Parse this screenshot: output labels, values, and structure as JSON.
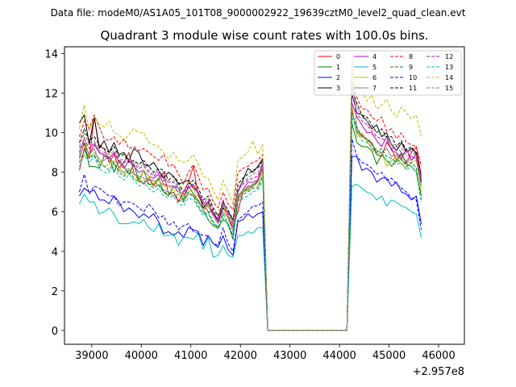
{
  "chart_data": {
    "type": "line",
    "suptitle": "Data file: modeM0/AS1A05_101T08_9000002922_19639cztM0_level2_quad_clean.evt",
    "title": "Quadrant 3 module wise count rates with 100.0s bins.",
    "xlabel": "",
    "ylabel": "",
    "x_offset_label": "+2.957e8",
    "xlim": [
      38450,
      46520
    ],
    "ylim": [
      -0.7,
      14.35
    ],
    "xticks": [
      39000,
      40000,
      41000,
      42000,
      43000,
      44000,
      45000,
      46000
    ],
    "xtick_labels": [
      "39000",
      "40000",
      "41000",
      "42000",
      "43000",
      "44000",
      "45000",
      "46000"
    ],
    "yticks": [
      0,
      2,
      4,
      6,
      8,
      10,
      12,
      14
    ],
    "ytick_labels": [
      "0",
      "2",
      "4",
      "6",
      "8",
      "10",
      "12",
      "14"
    ],
    "legend_position": "upper-right",
    "x_start": 38750,
    "x_step": 100,
    "series": [
      {
        "name": "0",
        "color": "#ff0000",
        "dash": false,
        "values": [
          8.1,
          9.2,
          8.7,
          10.8,
          9.3,
          9.2,
          8.5,
          8.9,
          8.2,
          8.5,
          9.0,
          8.0,
          7.6,
          7.4,
          7.7,
          7.3,
          7.7,
          8.0,
          6.9,
          7.0,
          6.5,
          7.0,
          7.5,
          8.3,
          6.8,
          6.4,
          6.0,
          6.0,
          5.5,
          6.2,
          5.8,
          5.2,
          6.0,
          7.0,
          7.3,
          7.3,
          7.6,
          8.5,
          0,
          0,
          0,
          0,
          0,
          0,
          0,
          0,
          0,
          0,
          0,
          0,
          0,
          0,
          0,
          0,
          0,
          11.2,
          10.0,
          9.9,
          9.6,
          9.5,
          8.9,
          8.8,
          9.5,
          9.2,
          8.6,
          8.9,
          8.5,
          9.0,
          9.3,
          7.8
        ]
      },
      {
        "name": "1",
        "color": "#008000",
        "dash": false,
        "values": [
          8.7,
          9.5,
          8.3,
          8.3,
          8.2,
          8.8,
          8.8,
          8.0,
          8.6,
          8.3,
          7.9,
          8.4,
          7.6,
          8.1,
          7.4,
          7.4,
          7.7,
          7.0,
          6.8,
          7.3,
          7.2,
          6.6,
          7.3,
          6.9,
          6.6,
          6.1,
          5.6,
          5.3,
          5.2,
          5.6,
          5.4,
          4.6,
          6.7,
          7.0,
          7.1,
          7.3,
          7.5,
          8.2,
          0,
          0,
          0,
          0,
          0,
          0,
          0,
          0,
          0,
          0,
          0,
          0,
          0,
          0,
          0,
          0,
          0,
          10.5,
          9.5,
          9.3,
          9.3,
          9.1,
          8.4,
          8.9,
          8.6,
          8.3,
          8.6,
          9.0,
          8.4,
          8.3,
          8.0,
          6.8
        ]
      },
      {
        "name": "2",
        "color": "#0000ff",
        "dash": false,
        "values": [
          6.8,
          7.2,
          7.0,
          7.1,
          6.6,
          6.6,
          6.4,
          6.8,
          6.5,
          6.0,
          6.2,
          6.0,
          5.7,
          5.9,
          5.7,
          5.9,
          5.5,
          4.9,
          5.0,
          4.8,
          5.0,
          4.7,
          5.2,
          5.1,
          5.0,
          4.3,
          4.8,
          4.4,
          4.2,
          4.8,
          4.1,
          3.8,
          5.5,
          5.6,
          5.9,
          5.7,
          5.9,
          6.0,
          0,
          0,
          0,
          0,
          0,
          0,
          0,
          0,
          0,
          0,
          0,
          0,
          0,
          0,
          0,
          0,
          0,
          8.8,
          8.8,
          8.1,
          8.2,
          8.0,
          7.5,
          7.7,
          7.7,
          7.3,
          7.5,
          7.0,
          6.9,
          6.6,
          6.8,
          5.4
        ]
      },
      {
        "name": "3",
        "color": "#000000",
        "dash": false,
        "values": [
          10.5,
          10.9,
          9.4,
          10.8,
          9.2,
          9.6,
          9.0,
          9.5,
          8.9,
          9.0,
          8.6,
          9.2,
          9.0,
          8.4,
          8.3,
          8.5,
          8.1,
          7.7,
          8.0,
          7.8,
          7.4,
          7.5,
          7.6,
          7.2,
          7.0,
          6.2,
          6.5,
          5.9,
          5.6,
          6.2,
          6.0,
          5.6,
          7.0,
          7.6,
          8.2,
          8.0,
          8.3,
          8.7,
          0,
          0,
          0,
          0,
          0,
          0,
          0,
          0,
          0,
          0,
          0,
          0,
          0,
          0,
          0,
          0,
          0,
          12.0,
          11.0,
          10.9,
          10.6,
          10.2,
          10.4,
          9.8,
          10.0,
          9.4,
          9.1,
          9.5,
          9.0,
          9.2,
          9.0,
          7.5
        ]
      },
      {
        "name": "4",
        "color": "#bf00bf",
        "dash": false,
        "values": [
          9.2,
          9.5,
          8.9,
          9.4,
          9.0,
          8.9,
          8.7,
          9.0,
          8.5,
          8.2,
          8.6,
          8.3,
          8.0,
          8.1,
          7.8,
          7.7,
          7.9,
          7.4,
          7.3,
          7.3,
          7.0,
          6.8,
          7.2,
          7.4,
          6.9,
          6.5,
          6.3,
          5.9,
          5.5,
          6.6,
          5.7,
          5.2,
          6.8,
          7.1,
          7.5,
          7.5,
          7.6,
          8.2,
          0,
          0,
          0,
          0,
          0,
          0,
          0,
          0,
          0,
          0,
          0,
          0,
          0,
          0,
          0,
          0,
          0,
          11.5,
          10.8,
          10.4,
          10.0,
          10.0,
          9.6,
          9.3,
          9.8,
          9.1,
          9.0,
          8.7,
          9.2,
          8.6,
          8.9,
          7.7
        ]
      },
      {
        "name": "5",
        "color": "#00bfbf",
        "dash": false,
        "values": [
          6.4,
          6.9,
          6.5,
          6.5,
          5.9,
          6.0,
          6.2,
          5.9,
          5.4,
          5.4,
          5.4,
          5.5,
          5.4,
          5.6,
          5.2,
          5.0,
          5.4,
          4.8,
          4.8,
          4.9,
          4.3,
          4.7,
          4.7,
          4.6,
          4.9,
          4.1,
          4.7,
          3.7,
          3.8,
          4.3,
          3.8,
          3.7,
          4.8,
          4.8,
          5.0,
          4.9,
          5.2,
          5.2,
          0,
          0,
          0,
          0,
          0,
          0,
          0,
          0,
          0,
          0,
          0,
          0,
          0,
          0,
          0,
          0,
          0,
          7.3,
          7.4,
          7.2,
          7.0,
          6.9,
          6.6,
          6.8,
          6.3,
          6.6,
          6.5,
          6.3,
          6.2,
          6.0,
          5.9,
          4.7
        ]
      },
      {
        "name": "6",
        "color": "#bfbf00",
        "dash": false,
        "values": [
          8.9,
          9.8,
          8.7,
          9.0,
          8.7,
          8.3,
          8.4,
          8.6,
          8.3,
          7.9,
          8.1,
          8.0,
          7.5,
          8.1,
          7.8,
          7.4,
          7.6,
          7.3,
          7.3,
          7.1,
          7.0,
          6.8,
          7.0,
          7.2,
          6.5,
          6.1,
          6.4,
          6.0,
          5.8,
          6.3,
          5.8,
          5.3,
          6.9,
          7.0,
          7.2,
          7.4,
          7.3,
          8.0,
          0,
          0,
          0,
          0,
          0,
          0,
          0,
          0,
          0,
          0,
          0,
          0,
          0,
          0,
          0,
          0,
          0,
          11.4,
          9.8,
          10.0,
          9.6,
          9.2,
          8.9,
          9.0,
          8.3,
          8.6,
          8.8,
          8.4,
          8.2,
          8.5,
          8.6,
          7.0
        ]
      },
      {
        "name": "7",
        "color": "#808080",
        "dash": false,
        "values": [
          8.8,
          9.4,
          8.9,
          9.2,
          8.5,
          8.6,
          8.8,
          8.4,
          8.1,
          8.0,
          8.2,
          7.9,
          7.8,
          7.7,
          7.6,
          7.6,
          7.3,
          7.1,
          7.0,
          6.8,
          6.9,
          6.5,
          6.9,
          6.8,
          6.5,
          6.1,
          6.3,
          5.8,
          5.4,
          6.0,
          5.7,
          5.0,
          6.6,
          7.1,
          7.2,
          7.4,
          7.5,
          8.3,
          0,
          0,
          0,
          0,
          0,
          0,
          0,
          0,
          0,
          0,
          0,
          0,
          0,
          0,
          0,
          0,
          0,
          13.6,
          10.2,
          9.8,
          9.7,
          9.4,
          9.1,
          9.0,
          9.2,
          8.8,
          8.9,
          8.6,
          8.4,
          8.8,
          8.7,
          7.3
        ]
      },
      {
        "name": "8",
        "color": "#ff0000",
        "dash": true,
        "values": [
          9.8,
          10.6,
          10.2,
          10.9,
          10.3,
          9.7,
          9.6,
          9.8,
          9.4,
          9.7,
          9.2,
          9.3,
          9.1,
          9.2,
          9.0,
          8.8,
          8.6,
          8.9,
          8.3,
          8.4,
          7.9,
          7.4,
          8.0,
          8.4,
          7.8,
          7.1,
          7.2,
          6.5,
          6.2,
          7.0,
          6.4,
          6.1,
          8.0,
          8.2,
          8.3,
          8.5,
          8.6,
          8.9,
          0,
          0,
          0,
          0,
          0,
          0,
          0,
          0,
          0,
          0,
          0,
          0,
          0,
          0,
          0,
          0,
          0,
          12.5,
          11.8,
          11.2,
          11.2,
          10.8,
          10.6,
          10.8,
          10.1,
          10.2,
          9.7,
          10.0,
          9.5,
          9.4,
          9.3,
          8.3
        ]
      },
      {
        "name": "9",
        "color": "#008000",
        "dash": true,
        "values": [
          8.5,
          9.1,
          8.7,
          8.9,
          8.4,
          8.3,
          8.1,
          8.5,
          8.0,
          7.8,
          8.1,
          7.7,
          7.5,
          7.6,
          7.4,
          7.2,
          7.4,
          7.0,
          6.9,
          7.0,
          6.6,
          6.5,
          7.0,
          6.8,
          6.3,
          5.9,
          6.0,
          5.5,
          5.2,
          5.9,
          5.4,
          4.8,
          6.5,
          6.9,
          7.0,
          7.2,
          7.2,
          7.8,
          0,
          0,
          0,
          0,
          0,
          0,
          0,
          0,
          0,
          0,
          0,
          0,
          0,
          0,
          0,
          0,
          0,
          11.0,
          10.3,
          9.8,
          9.7,
          9.5,
          9.0,
          9.2,
          8.8,
          8.7,
          8.5,
          8.7,
          8.3,
          8.5,
          8.2,
          6.6
        ]
      },
      {
        "name": "10",
        "color": "#0000ff",
        "dash": true,
        "values": [
          7.0,
          7.9,
          6.9,
          7.3,
          7.2,
          7.0,
          6.8,
          6.8,
          6.3,
          6.5,
          6.5,
          6.4,
          6.2,
          6.0,
          6.4,
          6.1,
          5.7,
          5.8,
          5.3,
          5.5,
          5.1,
          5.3,
          5.4,
          5.0,
          4.9,
          4.8,
          4.8,
          4.4,
          4.3,
          5.2,
          4.4,
          4.0,
          5.6,
          5.8,
          6.0,
          6.3,
          6.3,
          6.5,
          0,
          0,
          0,
          0,
          0,
          0,
          0,
          0,
          0,
          0,
          0,
          0,
          0,
          0,
          0,
          0,
          0,
          9.7,
          8.8,
          8.5,
          8.4,
          8.2,
          7.9,
          8.0,
          7.6,
          7.7,
          7.4,
          7.2,
          7.0,
          6.7,
          6.6,
          5.1
        ]
      },
      {
        "name": "11",
        "color": "#000000",
        "dash": true,
        "values": [
          9.5,
          10.2,
          9.6,
          9.8,
          9.4,
          9.2,
          9.0,
          9.3,
          8.8,
          8.9,
          8.5,
          8.6,
          8.4,
          8.6,
          8.3,
          8.0,
          8.2,
          8.1,
          7.6,
          7.8,
          7.5,
          7.0,
          7.4,
          7.6,
          7.2,
          6.6,
          6.8,
          6.2,
          5.8,
          6.5,
          6.1,
          5.6,
          7.4,
          7.7,
          7.9,
          8.1,
          8.2,
          8.6,
          0,
          0,
          0,
          0,
          0,
          0,
          0,
          0,
          0,
          0,
          0,
          0,
          0,
          0,
          0,
          0,
          0,
          12.2,
          11.5,
          10.9,
          10.8,
          10.4,
          10.0,
          10.2,
          9.8,
          9.8,
          9.3,
          9.6,
          9.1,
          9.3,
          8.9,
          7.9
        ]
      },
      {
        "name": "12",
        "color": "#bf00bf",
        "dash": true,
        "values": [
          9.0,
          9.7,
          9.2,
          9.5,
          9.0,
          8.8,
          8.7,
          9.0,
          8.6,
          8.5,
          8.6,
          8.4,
          8.2,
          8.3,
          8.0,
          7.8,
          8.0,
          7.6,
          7.5,
          7.5,
          7.2,
          6.9,
          7.3,
          7.3,
          6.9,
          6.4,
          6.6,
          6.0,
          5.6,
          6.4,
          5.9,
          5.4,
          7.1,
          7.4,
          7.6,
          7.7,
          7.8,
          8.4,
          0,
          0,
          0,
          0,
          0,
          0,
          0,
          0,
          0,
          0,
          0,
          0,
          0,
          0,
          0,
          0,
          0,
          12.0,
          11.0,
          10.6,
          10.4,
          10.1,
          9.8,
          9.7,
          9.6,
          9.2,
          9.3,
          9.0,
          8.9,
          8.8,
          8.7,
          7.6
        ]
      },
      {
        "name": "13",
        "color": "#00bfbf",
        "dash": true,
        "values": [
          8.3,
          8.9,
          8.5,
          8.8,
          8.2,
          8.0,
          8.0,
          8.3,
          7.8,
          7.6,
          7.9,
          7.6,
          7.3,
          7.5,
          7.2,
          7.0,
          7.2,
          6.8,
          6.7,
          6.8,
          6.4,
          6.3,
          6.7,
          6.6,
          6.2,
          5.8,
          5.9,
          5.4,
          5.1,
          5.7,
          5.3,
          4.7,
          6.3,
          6.7,
          6.8,
          7.0,
          7.1,
          7.6,
          0,
          0,
          0,
          0,
          0,
          0,
          0,
          0,
          0,
          0,
          0,
          0,
          0,
          0,
          0,
          0,
          0,
          10.8,
          10.1,
          9.6,
          9.5,
          9.3,
          8.9,
          9.0,
          8.6,
          8.5,
          8.4,
          8.5,
          8.1,
          8.3,
          8.0,
          6.5
        ]
      },
      {
        "name": "14",
        "color": "#bfbf00",
        "dash": true,
        "values": [
          10.2,
          11.4,
          10.1,
          10.8,
          10.4,
          10.3,
          10.6,
          10.0,
          9.9,
          9.6,
          9.9,
          10.2,
          10.0,
          10.0,
          9.5,
          9.4,
          9.3,
          9.0,
          8.7,
          9.0,
          8.6,
          8.5,
          8.6,
          8.9,
          8.4,
          7.8,
          7.7,
          7.1,
          6.6,
          7.6,
          7.0,
          6.4,
          8.6,
          8.8,
          9.0,
          9.6,
          8.9,
          9.4,
          0,
          0,
          0,
          0,
          0,
          0,
          0,
          0,
          0,
          0,
          0,
          0,
          0,
          0,
          0,
          0,
          0,
          13.2,
          12.3,
          12.1,
          11.6,
          11.9,
          11.2,
          11.4,
          11.7,
          11.1,
          10.8,
          11.3,
          11.0,
          10.7,
          10.9,
          9.8
        ]
      },
      {
        "name": "15",
        "color": "#808080",
        "dash": true,
        "values": [
          9.3,
          10.0,
          9.4,
          9.6,
          9.1,
          9.0,
          8.9,
          9.1,
          8.7,
          8.6,
          8.7,
          8.5,
          8.3,
          8.4,
          8.1,
          7.9,
          8.1,
          7.8,
          7.5,
          7.6,
          7.3,
          7.0,
          7.4,
          7.4,
          7.0,
          6.5,
          6.7,
          6.1,
          5.7,
          6.4,
          6.0,
          5.5,
          7.2,
          7.5,
          7.7,
          7.9,
          8.0,
          8.5,
          0,
          0,
          0,
          0,
          0,
          0,
          0,
          0,
          0,
          0,
          0,
          0,
          0,
          0,
          0,
          0,
          0,
          12.4,
          11.3,
          10.8,
          10.6,
          10.3,
          10.0,
          9.9,
          9.8,
          9.4,
          9.4,
          9.2,
          9.0,
          9.1,
          8.8,
          7.7
        ]
      }
    ]
  }
}
